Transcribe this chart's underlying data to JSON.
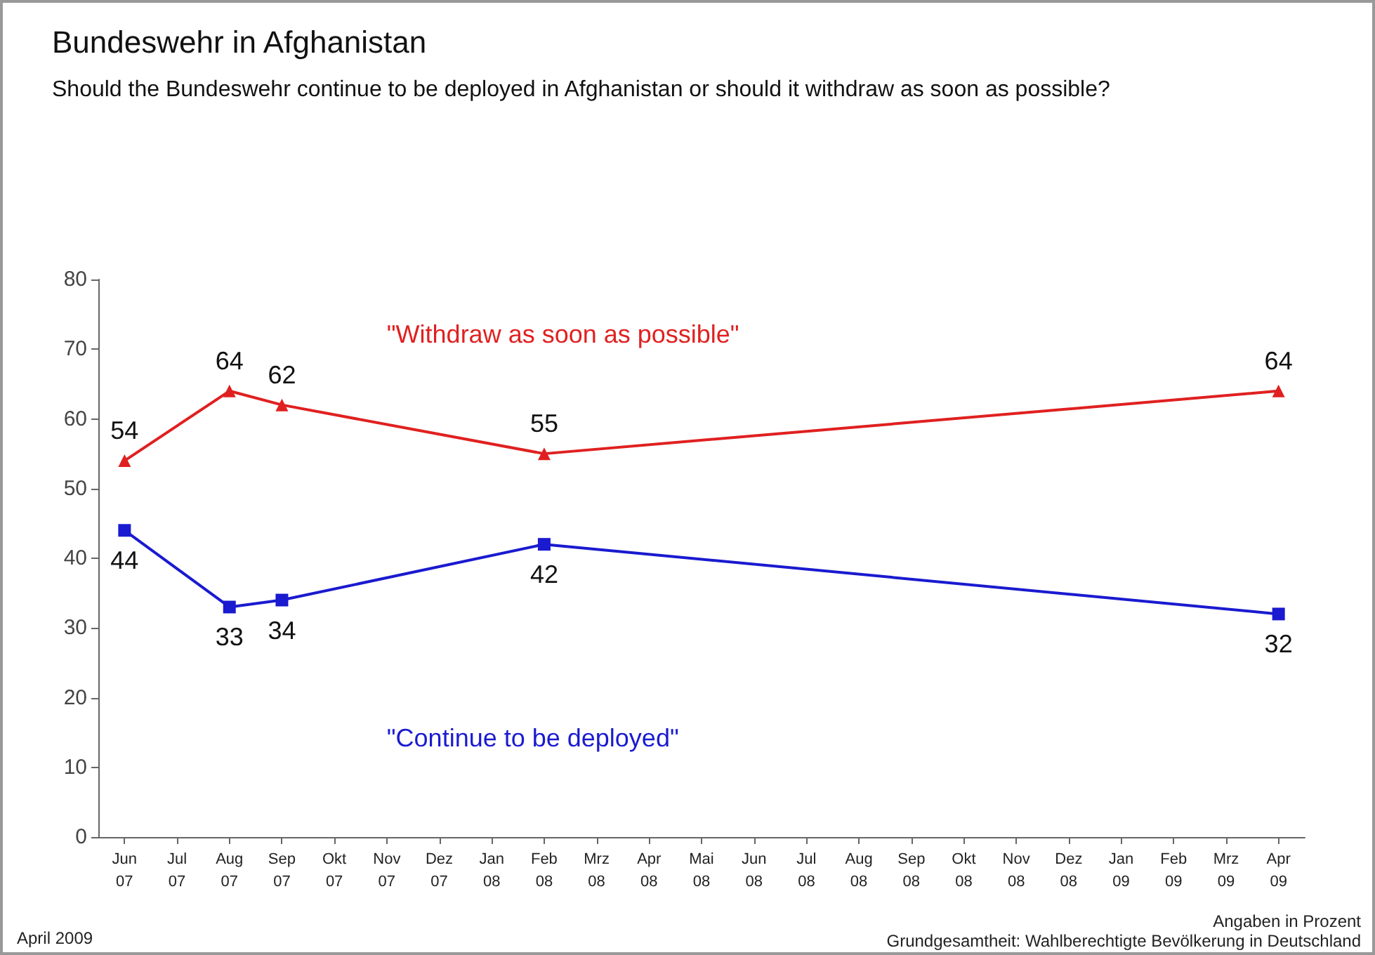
{
  "chart_data": {
    "type": "line",
    "title": "Bundeswehr in Afghanistan",
    "subtitle": "Should the Bundeswehr continue to be deployed in Afghanistan or should it withdraw as soon as possible?",
    "categories": [
      "Jun 07",
      "Jul 07",
      "Aug 07",
      "Sep 07",
      "Okt 07",
      "Nov 07",
      "Dez 07",
      "Jan 08",
      "Feb 08",
      "Mrz 08",
      "Apr 08",
      "Mai 08",
      "Jun 08",
      "Jul 08",
      "Aug 08",
      "Sep 08",
      "Okt 08",
      "Nov 08",
      "Dez 08",
      "Jan 09",
      "Feb 09",
      "Mrz 09",
      "Apr 09"
    ],
    "series": [
      {
        "name": "\"Withdraw as soon as possible\"",
        "color": "#e02020",
        "marker": "triangle",
        "values": [
          54,
          null,
          64,
          62,
          null,
          null,
          null,
          null,
          55,
          null,
          null,
          null,
          null,
          null,
          null,
          null,
          null,
          null,
          null,
          null,
          null,
          null,
          64
        ]
      },
      {
        "name": "\"Continue to be deployed\"",
        "color": "#1a1ad0",
        "marker": "square",
        "values": [
          44,
          null,
          33,
          34,
          null,
          null,
          null,
          null,
          42,
          null,
          null,
          null,
          null,
          null,
          null,
          null,
          null,
          null,
          null,
          null,
          null,
          null,
          32
        ]
      }
    ],
    "ylim": [
      0,
      80
    ],
    "yticks": [
      0,
      10,
      20,
      30,
      40,
      50,
      60,
      70,
      80
    ],
    "grid": false,
    "legend": false,
    "data_labels": true,
    "annotations": [
      "April 2009",
      "Angaben in Prozent",
      "Grundgesamtheit: Wahlberechtigte Bevölkerung in Deutschland"
    ]
  }
}
